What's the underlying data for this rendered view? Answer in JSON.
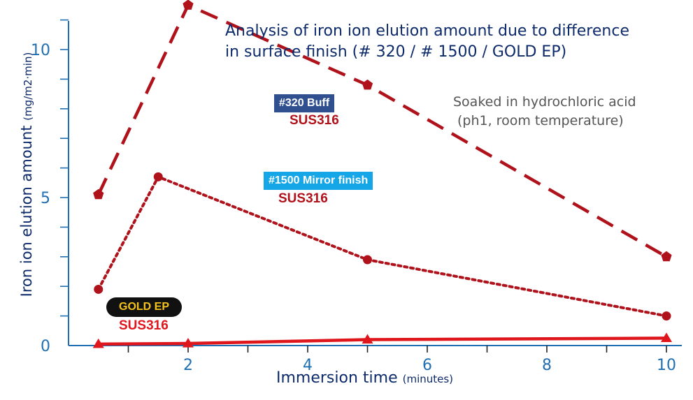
{
  "chart_data": {
    "type": "line",
    "title": "Analysis of iron ion elution amount due to difference",
    "title_line2": "in surface finish (# 320 / # 1500 / GOLD EP)",
    "note_line1": "Soaked in hydrochloric acid",
    "note_line2": "(ph1, room temperature)",
    "ylabel": "Iron ion elution amount",
    "ylabel_unit": "(mg/m2·min)",
    "xlabel": "Immersion time",
    "xlabel_unit": "(minutes)",
    "xlim": [
      0,
      10
    ],
    "ylim": [
      0,
      11.5
    ],
    "x_ticks": [
      2,
      4,
      6,
      8,
      10
    ],
    "y_ticks": [
      0,
      5,
      10
    ],
    "series": [
      {
        "name": "#320 Buff",
        "material": "SUS316",
        "color": "#b0121b",
        "style": "dashed",
        "marker": "pentagon",
        "x": [
          0.5,
          2,
          5,
          10
        ],
        "y": [
          5.1,
          11.5,
          8.8,
          3.0
        ]
      },
      {
        "name": "#1500 Mirror finish",
        "material": "SUS316",
        "color": "#b0121b",
        "style": "dotted",
        "marker": "circle",
        "x": [
          0.5,
          1.5,
          5,
          10
        ],
        "y": [
          1.9,
          5.7,
          2.9,
          1.0
        ]
      },
      {
        "name": "GOLD EP",
        "material": "SUS316",
        "color": "#e0161d",
        "style": "solid",
        "marker": "triangle",
        "x": [
          0.5,
          2,
          5,
          10
        ],
        "y": [
          0.05,
          0.07,
          0.2,
          0.25
        ]
      }
    ]
  }
}
